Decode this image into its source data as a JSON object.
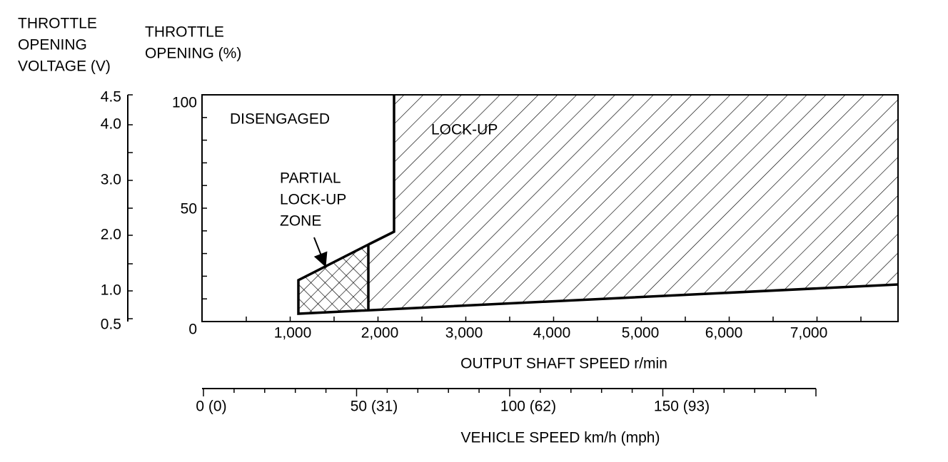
{
  "left_axis": {
    "title": [
      "THROTTLE",
      "OPENING",
      "VOLTAGE (V)"
    ],
    "labels": [
      "4.5",
      "4.0",
      "3.0",
      "2.0",
      "1.0",
      "0.5"
    ]
  },
  "percent_axis": {
    "title": [
      "THROTTLE",
      "OPENING (%)"
    ],
    "labels": [
      "100",
      "50",
      "0"
    ]
  },
  "x_axis": {
    "title": "OUTPUT SHAFT SPEED r/min",
    "labels": [
      "1,000",
      "2,000",
      "3,000",
      "4,000",
      "5,000",
      "6,000",
      "7,000"
    ]
  },
  "speed_axis": {
    "title": "VEHICLE SPEED km/h (mph)",
    "labels": [
      "0 (0)",
      "50 (31)",
      "100 (62)",
      "150 (93)"
    ]
  },
  "zones": {
    "disengaged": "DISENGAGED",
    "lock_up": "LOCK-UP",
    "partial": [
      "PARTIAL",
      "LOCK-UP",
      "ZONE"
    ]
  }
}
